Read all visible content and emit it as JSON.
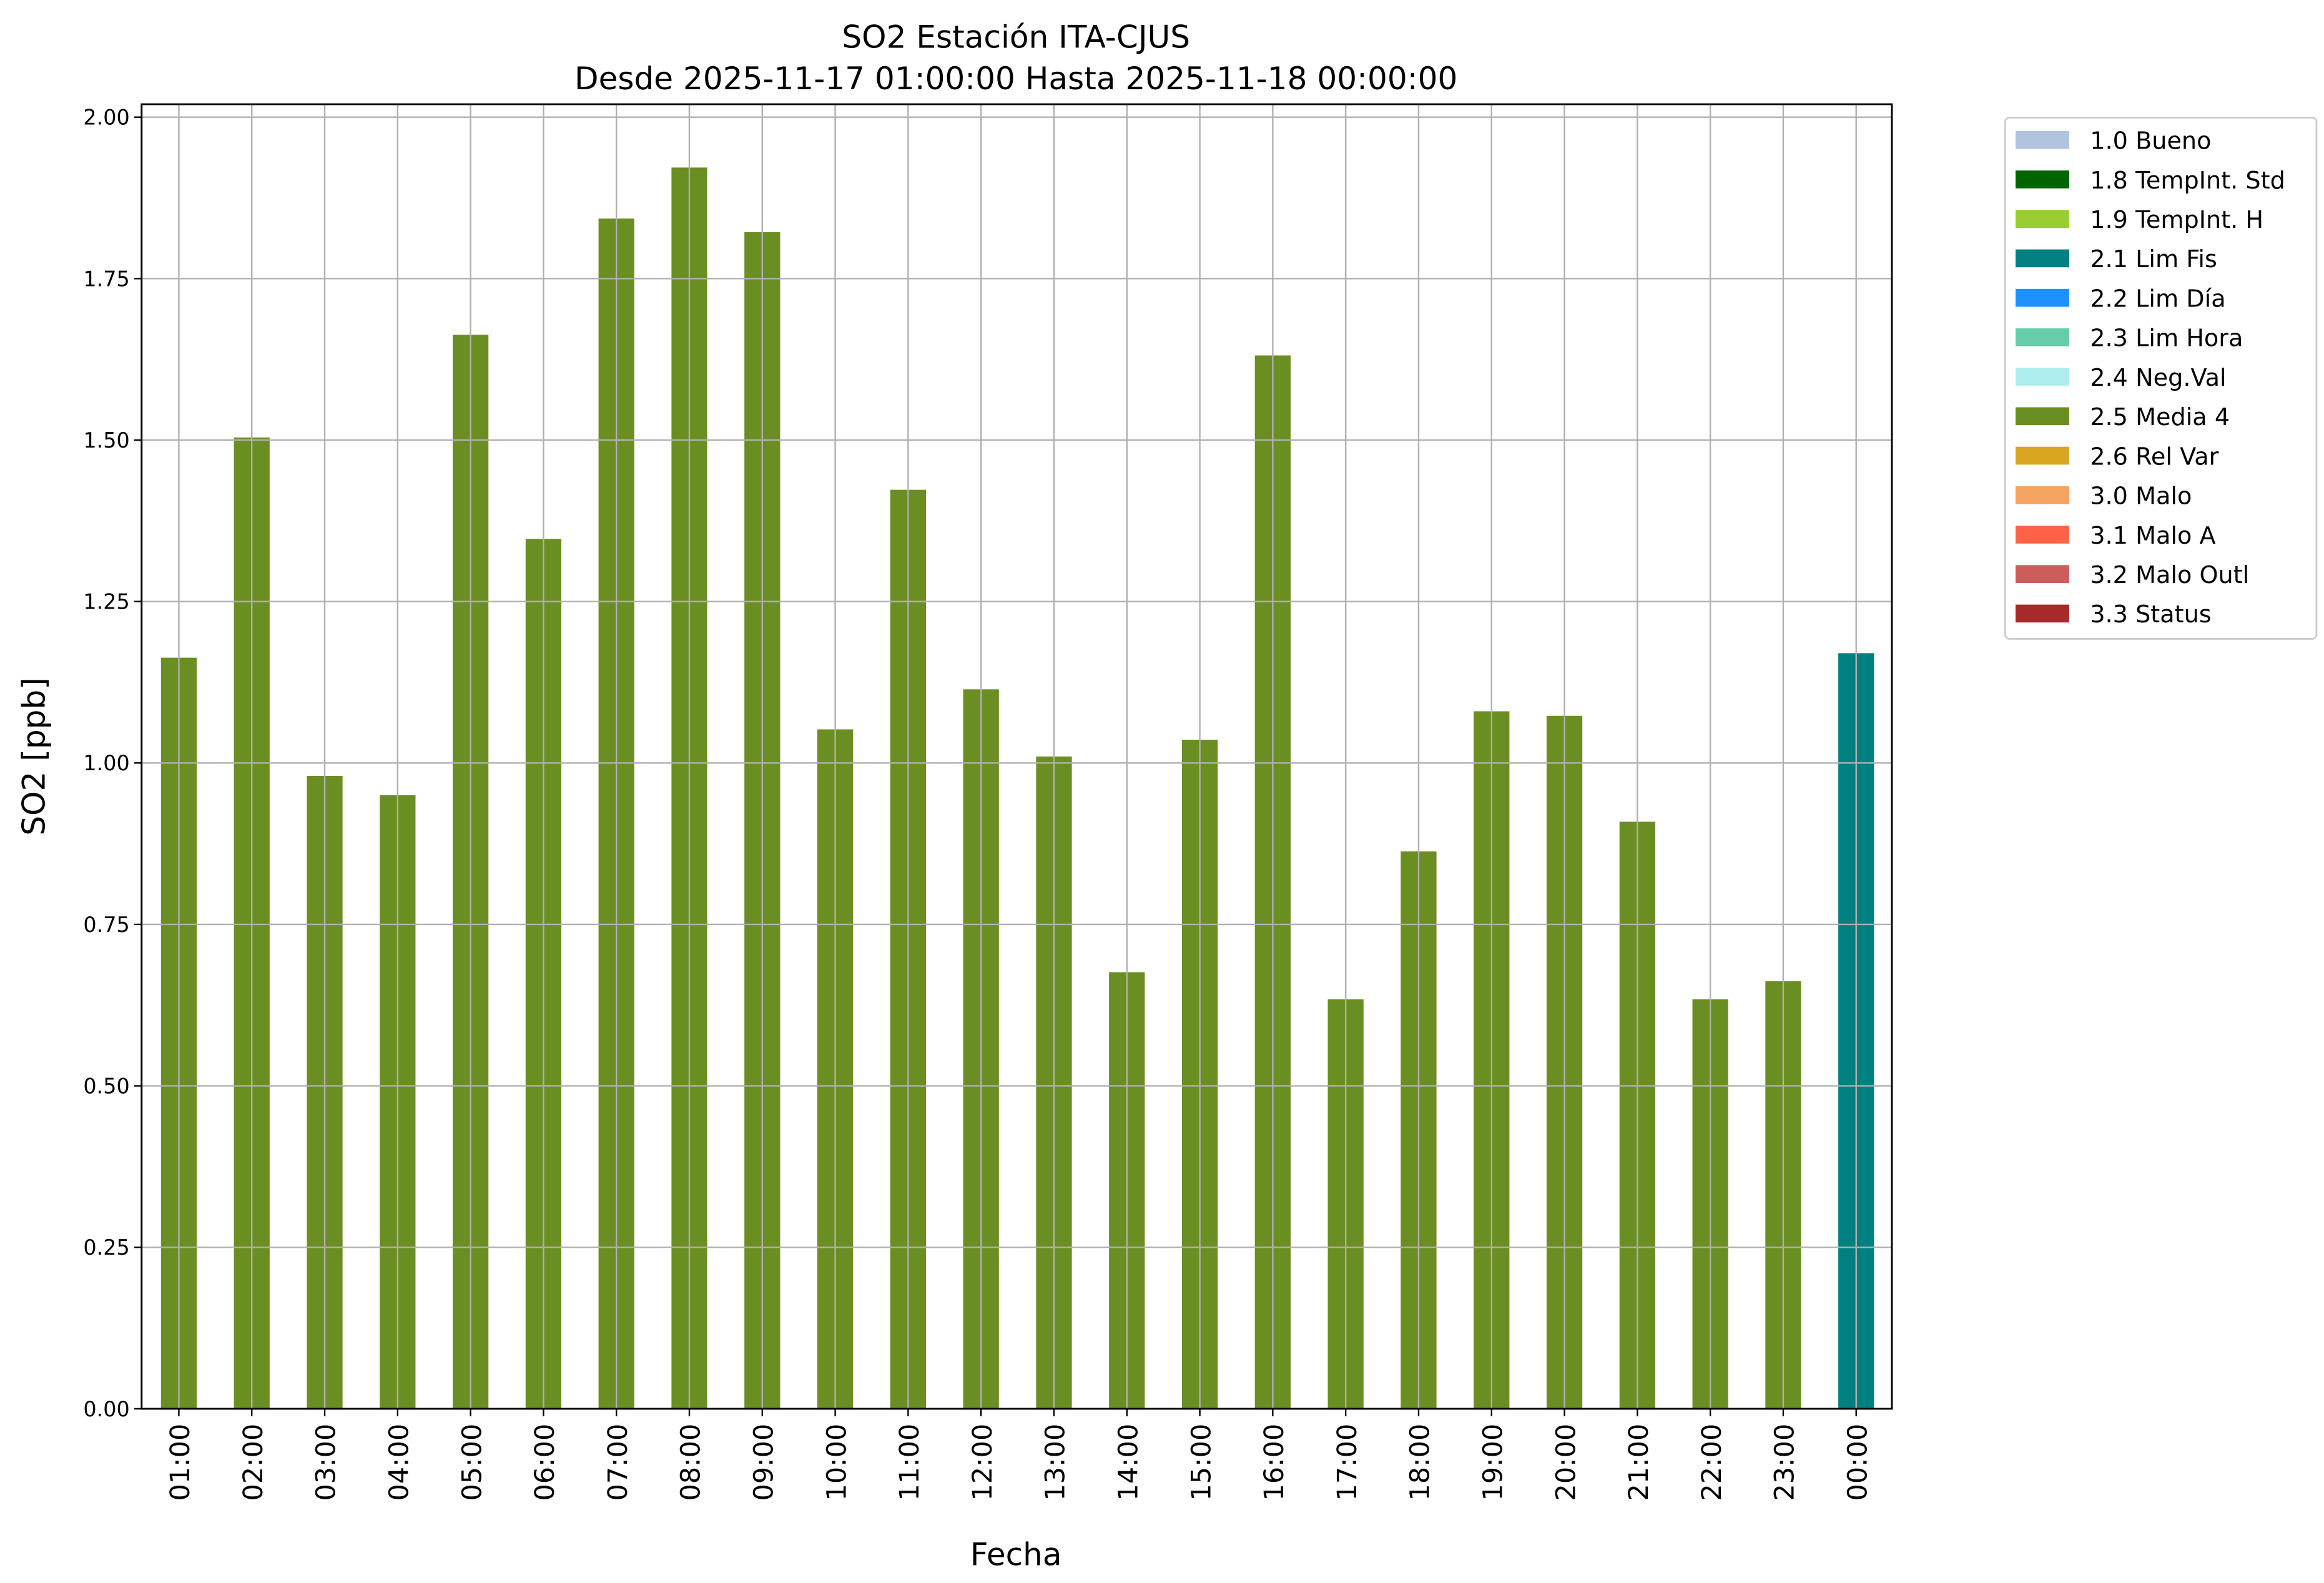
{
  "chart_data": {
    "type": "bar",
    "title": "SO2 Estación ITA-CJUS",
    "subtitle": "Desde 2025-11-17 01:00:00 Hasta 2025-11-18 00:00:00",
    "xlabel": "Fecha",
    "ylabel": "SO2 [ppb]",
    "ylim": [
      0,
      2.02
    ],
    "yticks": [
      "0.00",
      "0.25",
      "0.50",
      "0.75",
      "1.00",
      "1.25",
      "1.50",
      "1.75",
      "2.00"
    ],
    "grid": true,
    "legend_placement": "outside-top-right",
    "categories": [
      "01:00",
      "02:00",
      "03:00",
      "04:00",
      "05:00",
      "06:00",
      "07:00",
      "08:00",
      "09:00",
      "10:00",
      "11:00",
      "12:00",
      "13:00",
      "14:00",
      "15:00",
      "16:00",
      "17:00",
      "18:00",
      "19:00",
      "20:00",
      "21:00",
      "22:00",
      "23:00",
      "00:00"
    ],
    "values": [
      1.163,
      1.504,
      0.98,
      0.95,
      1.663,
      1.347,
      1.843,
      1.922,
      1.822,
      1.052,
      1.423,
      1.114,
      1.01,
      0.676,
      1.036,
      1.631,
      0.634,
      0.863,
      1.08,
      1.073,
      0.909,
      0.634,
      0.662,
      1.17
    ],
    "flags": [
      "2.5 Media 4",
      "2.5 Media 4",
      "2.5 Media 4",
      "2.5 Media 4",
      "2.5 Media 4",
      "2.5 Media 4",
      "2.5 Media 4",
      "2.5 Media 4",
      "2.5 Media 4",
      "2.5 Media 4",
      "2.5 Media 4",
      "2.5 Media 4",
      "2.5 Media 4",
      "2.5 Media 4",
      "2.5 Media 4",
      "2.5 Media 4",
      "2.5 Media 4",
      "2.5 Media 4",
      "2.5 Media 4",
      "2.5 Media 4",
      "2.5 Media 4",
      "2.5 Media 4",
      "2.5 Media 4",
      "2.1 Lim Fis"
    ],
    "legend": [
      {
        "label": "1.0 Bueno",
        "color": "#b0c4de"
      },
      {
        "label": "1.8 TempInt. Std",
        "color": "#006400"
      },
      {
        "label": "1.9 TempInt. H",
        "color": "#9acd32"
      },
      {
        "label": "2.1 Lim Fis",
        "color": "#008080"
      },
      {
        "label": "2.2 Lim Día",
        "color": "#1e90ff"
      },
      {
        "label": "2.3 Lim Hora",
        "color": "#66cdaa"
      },
      {
        "label": "2.4 Neg.Val",
        "color": "#afeeee"
      },
      {
        "label": "2.5 Media 4",
        "color": "#6b8e23"
      },
      {
        "label": "2.6 Rel Var",
        "color": "#daa520"
      },
      {
        "label": "3.0 Malo",
        "color": "#f4a460"
      },
      {
        "label": "3.1 Malo A",
        "color": "#ff6347"
      },
      {
        "label": "3.2 Malo Outl",
        "color": "#cd5c5c"
      },
      {
        "label": "3.3 Status",
        "color": "#a52a2a"
      }
    ]
  }
}
